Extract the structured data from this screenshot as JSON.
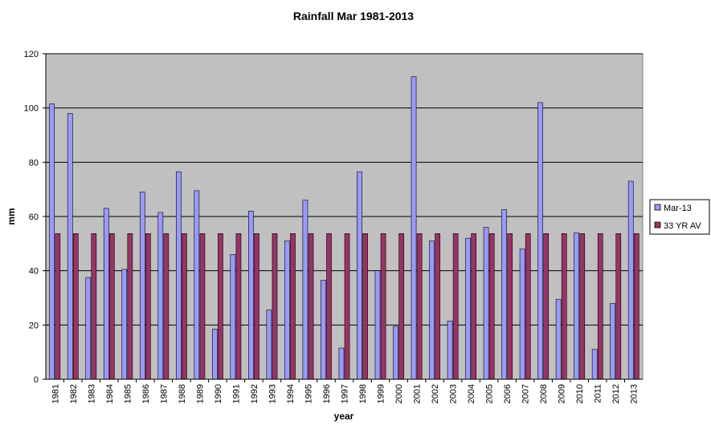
{
  "chart_data": {
    "type": "bar",
    "title": "Rainfall Mar 1981-2013",
    "xlabel": "year",
    "ylabel": "mm",
    "ylim": [
      0,
      120
    ],
    "yticks": [
      0,
      20,
      40,
      60,
      80,
      100,
      120
    ],
    "grid": true,
    "legend_position": "right",
    "categories": [
      "1981",
      "1982",
      "1983",
      "1984",
      "1985",
      "1986",
      "1987",
      "1988",
      "1989",
      "1990",
      "1991",
      "1992",
      "1993",
      "1994",
      "1995",
      "1996",
      "1997",
      "1998",
      "1999",
      "2000",
      "2001",
      "2002",
      "2003",
      "2004",
      "2005",
      "2006",
      "2007",
      "2008",
      "2009",
      "2010",
      "2011",
      "2012",
      "2013"
    ],
    "series": [
      {
        "name": "Mar-13",
        "color": "#9999ff",
        "values": [
          101.5,
          98,
          37.5,
          63,
          40.5,
          69,
          61.5,
          76.5,
          69.5,
          18.5,
          46,
          62,
          25.5,
          51,
          66,
          36.5,
          11.5,
          76.5,
          40,
          19.5,
          111.5,
          51,
          21.5,
          52,
          56,
          62.5,
          48,
          102,
          29.5,
          54,
          11,
          28,
          73
        ]
      },
      {
        "name": "33 YR AV",
        "color": "#993366",
        "values": [
          53.7,
          53.7,
          53.7,
          53.7,
          53.7,
          53.7,
          53.7,
          53.7,
          53.7,
          53.7,
          53.7,
          53.7,
          53.7,
          53.7,
          53.7,
          53.7,
          53.7,
          53.7,
          53.7,
          53.7,
          53.7,
          53.7,
          53.7,
          53.7,
          53.7,
          53.7,
          53.7,
          53.7,
          53.7,
          53.7,
          53.7,
          53.7,
          53.7
        ]
      }
    ],
    "plot_background": "#c0c0c0"
  }
}
